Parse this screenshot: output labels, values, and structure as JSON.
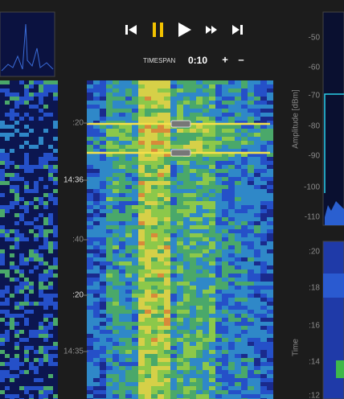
{
  "controls": {
    "timespan_label": "TIMESPAN",
    "timespan_value": "0:10",
    "increase": "+",
    "decrease": "–"
  },
  "waterfall": {
    "time_labels": [
      ":20",
      "14:36",
      ":40",
      ":20",
      "14:35"
    ]
  },
  "spectrum": {
    "axis_title": "Amplitude [dBm]",
    "ticks": [
      "-50",
      "-60",
      "-70",
      "-80",
      "-90",
      "-100",
      "-110"
    ]
  },
  "time_panel": {
    "axis_title": "Time",
    "ticks": [
      ":20",
      ":18",
      ":16",
      ":14",
      ":12"
    ]
  }
}
